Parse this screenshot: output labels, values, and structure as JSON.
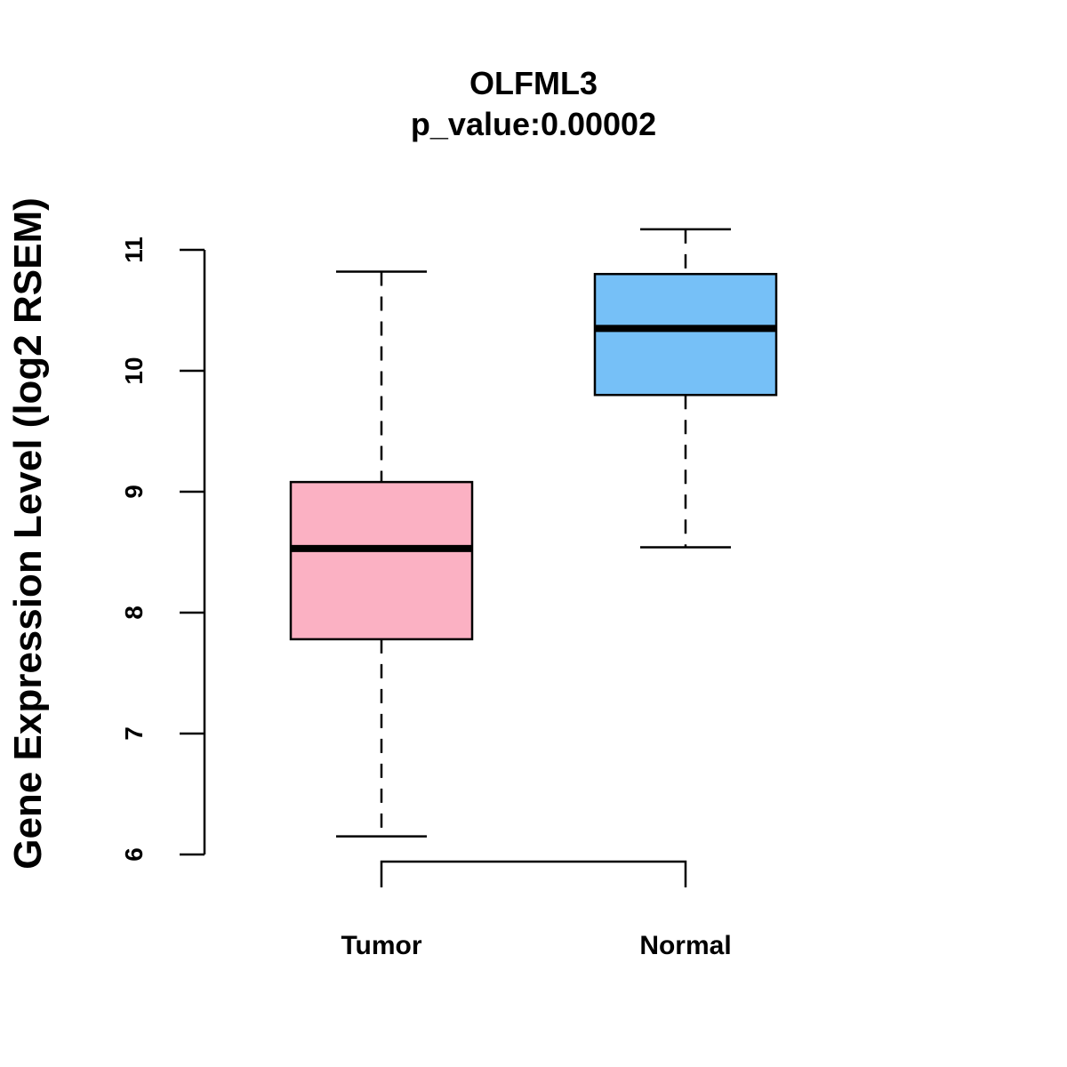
{
  "chart_data": {
    "type": "boxplot",
    "title": "OLFML3",
    "subtitle": "p_value:0.00002",
    "xlabel": "",
    "ylabel": "Gene Expression Level (log2 RSEM)",
    "ylim": [
      6,
      11
    ],
    "yticks": [
      6,
      7,
      8,
      9,
      10,
      11
    ],
    "categories": [
      "Tumor",
      "Normal"
    ],
    "series": [
      {
        "name": "Tumor",
        "whisker_low": 6.15,
        "q1": 7.78,
        "median": 8.53,
        "q3": 9.08,
        "whisker_high": 10.82,
        "color": "#FBB1C3"
      },
      {
        "name": "Normal",
        "whisker_low": 8.54,
        "q1": 9.8,
        "median": 10.35,
        "q3": 10.8,
        "whisker_high": 11.17,
        "color": "#76C0F7"
      }
    ],
    "significance_bracket": {
      "from": "Tumor",
      "to": "Normal"
    }
  }
}
